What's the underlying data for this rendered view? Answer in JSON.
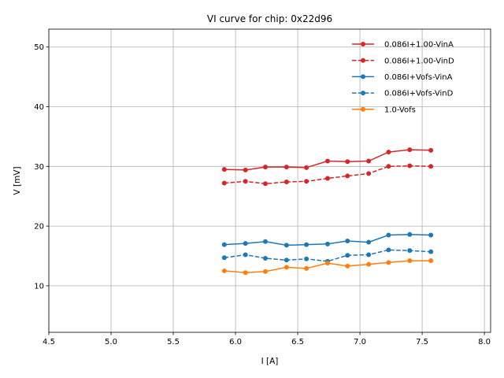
{
  "chart_data": {
    "type": "line",
    "title": "VI curve for chip: 0x22d96",
    "xlabel": "I [A]",
    "ylabel": "V [mV]",
    "xlim": [
      4.5,
      8.05
    ],
    "ylim": [
      2.2,
      53
    ],
    "grid": true,
    "legend_position": "top-right",
    "x_ticks": [
      4.5,
      5.0,
      5.5,
      6.0,
      6.5,
      7.0,
      7.5,
      8.0
    ],
    "x_tick_labels": [
      "4.5",
      "5.0",
      "5.5",
      "6.0",
      "6.5",
      "7.0",
      "7.5",
      "8.0"
    ],
    "y_ticks": [
      10,
      20,
      30,
      40,
      50
    ],
    "y_tick_labels": [
      "10",
      "20",
      "30",
      "40",
      "50"
    ],
    "x": [
      5.91,
      6.08,
      6.24,
      6.41,
      6.57,
      6.74,
      6.9,
      7.07,
      7.23,
      7.4,
      7.57
    ],
    "series": [
      {
        "name": "0.086I+1.00-VinA",
        "color": "#d62728",
        "dash": "solid",
        "values": [
          29.5,
          29.4,
          29.9,
          29.9,
          29.8,
          30.9,
          30.8,
          30.9,
          32.4,
          32.8,
          32.7
        ]
      },
      {
        "name": "0.086I+1.00-VinD",
        "color": "#d62728",
        "dash": "dashed",
        "values": [
          27.2,
          27.5,
          27.1,
          27.4,
          27.5,
          28.0,
          28.4,
          28.8,
          30.0,
          30.1,
          30.0
        ]
      },
      {
        "name": "0.086I+Vofs-VinA",
        "color": "#1f77b4",
        "dash": "solid",
        "values": [
          16.9,
          17.1,
          17.4,
          16.8,
          16.9,
          17.0,
          17.5,
          17.3,
          18.5,
          18.6,
          18.5
        ]
      },
      {
        "name": "0.086I+Vofs-VinD",
        "color": "#1f77b4",
        "dash": "dashed",
        "values": [
          14.7,
          15.2,
          14.6,
          14.3,
          14.5,
          14.1,
          15.1,
          15.2,
          16.0,
          15.9,
          15.7
        ]
      },
      {
        "name": "1.0-Vofs",
        "color": "#ff7f0e",
        "dash": "solid",
        "values": [
          12.5,
          12.2,
          12.4,
          13.1,
          12.9,
          13.8,
          13.3,
          13.6,
          13.9,
          14.2,
          14.2
        ]
      }
    ]
  }
}
